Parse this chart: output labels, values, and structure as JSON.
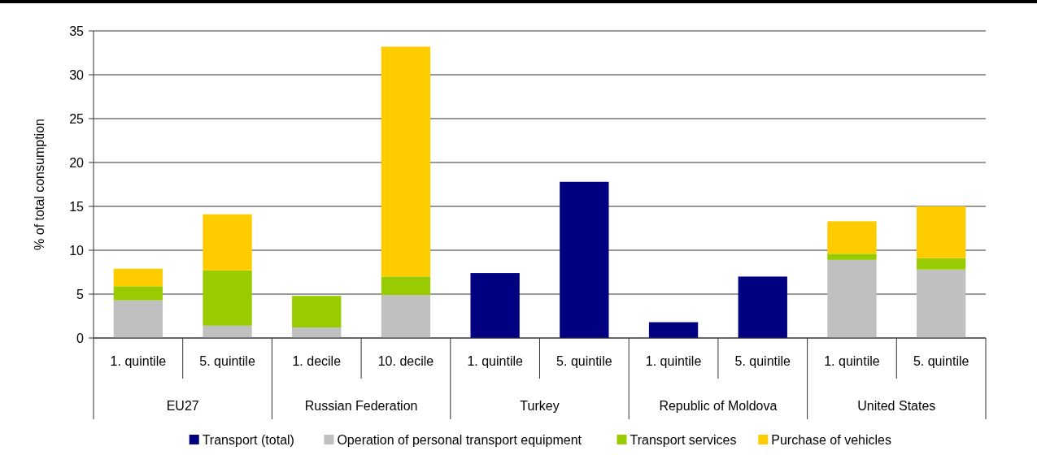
{
  "chart_data": {
    "type": "bar",
    "stacked": true,
    "ylabel": "% of total consumption",
    "categories": [
      "1. quintile",
      "5. quintile",
      "1. decile",
      "10. decile",
      "1. quintile",
      "5. quintile",
      "1. quintile",
      "5. quintile",
      "1. quintile",
      "5. quintile"
    ],
    "annotations": [
      "EU27",
      "Russian Federation",
      "Turkey",
      "Republic of Moldova",
      "United States"
    ],
    "series": [
      {
        "name": "Transport (total)",
        "color": "#000080",
        "values": [
          null,
          null,
          null,
          null,
          7.4,
          17.8,
          1.8,
          7.0,
          null,
          null
        ]
      },
      {
        "name": "Operation of personal transport equipment",
        "color": "#c0c0c0",
        "values": [
          4.3,
          1.4,
          1.2,
          4.9,
          null,
          null,
          null,
          null,
          8.9,
          7.8
        ]
      },
      {
        "name": "Transport services",
        "color": "#99cc00",
        "values": [
          1.6,
          6.3,
          3.6,
          2.1,
          null,
          null,
          null,
          null,
          0.7,
          1.3
        ]
      },
      {
        "name": "Purchase of vehicles",
        "color": "#ffcc00",
        "values": [
          2.0,
          6.4,
          null,
          26.2,
          null,
          null,
          null,
          null,
          3.7,
          5.9
        ]
      }
    ],
    "ylim": [
      0,
      35
    ],
    "yticks": [
      0,
      5,
      10,
      15,
      20,
      25,
      30,
      35
    ],
    "grid": "y",
    "legend": "bottom"
  }
}
